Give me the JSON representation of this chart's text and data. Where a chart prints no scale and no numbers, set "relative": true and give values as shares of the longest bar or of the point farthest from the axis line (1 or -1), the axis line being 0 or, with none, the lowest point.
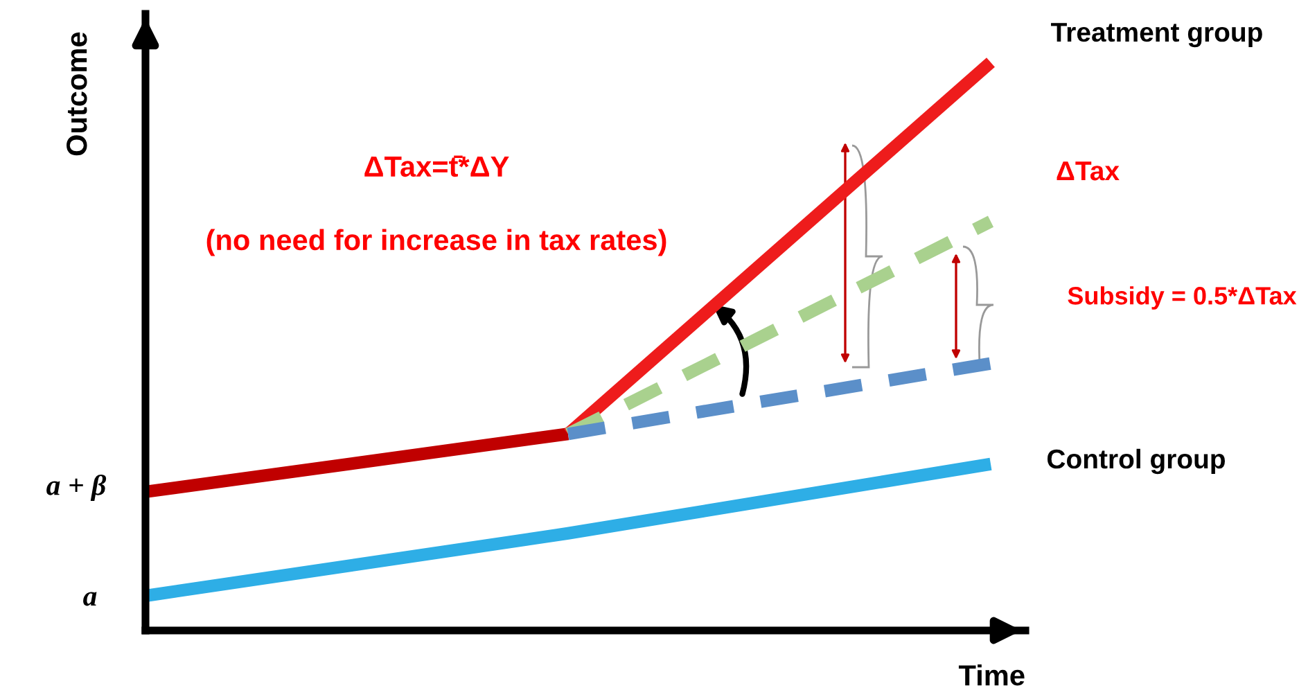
{
  "chart_data": {
    "type": "line",
    "relative": true,
    "xlabel": "Time",
    "ylabel": "Outcome",
    "categories": [
      null,
      null,
      null
    ],
    "series": [
      {
        "color": "#c00000",
        "values": [
          0.244,
          0.346,
          null
        ]
      },
      {
        "name": "Treatment group",
        "color": "#ee1c1c",
        "values": [
          null,
          0.346,
          1.0
        ]
      },
      {
        "color": "#a9d18e",
        "line_style": "dashed",
        "values": [
          null,
          0.346,
          0.72
        ]
      },
      {
        "color": "#5b8fc9",
        "line_style": "dashed",
        "values": [
          null,
          0.346,
          0.47
        ]
      },
      {
        "name": "Control group",
        "color": "#2eaee6",
        "values": [
          0.061,
          0.171,
          0.293
        ]
      }
    ],
    "annotations": [
      "ΔTax=t̄*ΔY",
      "(no need for increase in tax rates)",
      "ΔTax",
      "Subsidy = 0.5*ΔTax",
      "a + β",
      "a"
    ]
  }
}
